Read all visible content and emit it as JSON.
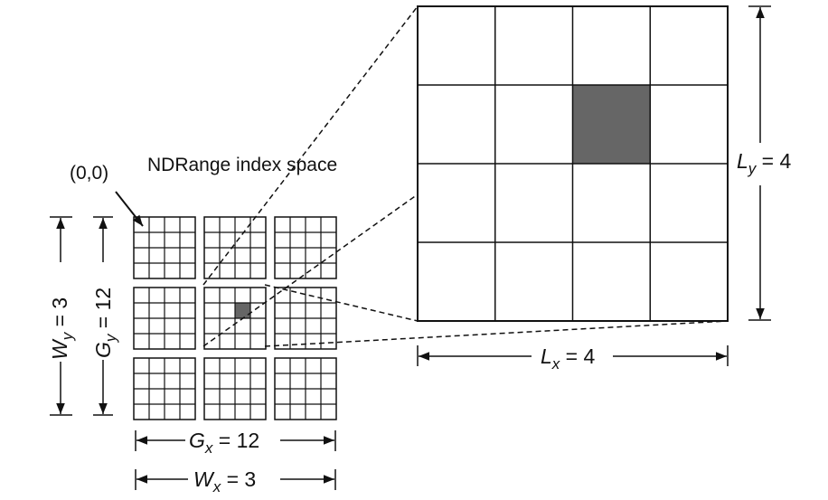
{
  "labels": {
    "origin": "(0,0)",
    "index_space": "NDRange index space",
    "Wy": {
      "var": "W",
      "sub": "y",
      "eq": " = 3"
    },
    "Gy": {
      "var": "G",
      "sub": "y",
      "eq": " = 12"
    },
    "Gx": {
      "var": "G",
      "sub": "x",
      "eq": " = 12"
    },
    "Wx": {
      "var": "W",
      "sub": "x",
      "eq": " = 3"
    },
    "Ly": {
      "var": "L",
      "sub": "y",
      "eq": " = 4"
    },
    "Lx": {
      "var": "L",
      "sub": "x",
      "eq": " = 4"
    }
  },
  "grid": {
    "work_groups_x": 3,
    "work_groups_y": 3,
    "local_size_x": 4,
    "local_size_y": 4,
    "highlighted_group": [
      1,
      1
    ],
    "highlighted_item": [
      2,
      1
    ]
  },
  "colors": {
    "line": "#111111",
    "highlight": "#666666"
  }
}
